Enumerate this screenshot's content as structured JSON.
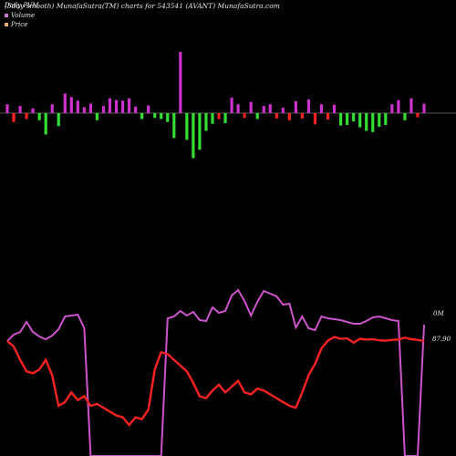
{
  "header": {
    "left_title": "Daily PVM",
    "title": "(5day smooth) MunafaSutra(TM) charts for 543541 (AVANT) MunafaSutra.com"
  },
  "legend": {
    "volume_label": "Volume",
    "price_label": "Price"
  },
  "labels": {
    "volume_end": "0M",
    "price_end": "87.90"
  },
  "colors": {
    "background": "#000000",
    "volume_line": "#cc55cc",
    "price_line": "#ff2222",
    "bar_up": "#cc33cc",
    "bar_down_red": "#ff2222",
    "bar_down_green": "#33dd33",
    "zero_line": "#aaaaaa",
    "legend_volume": "#d070d0",
    "legend_price": "#e8b070"
  },
  "chart_data": {
    "type": "line",
    "n": 66,
    "series": [
      {
        "name": "Volume",
        "values": [
          374,
          367,
          364,
          353,
          364,
          369,
          372,
          368,
          361,
          347,
          346,
          345,
          360,
          820,
          900,
          900,
          900,
          900,
          900,
          900,
          900,
          900,
          900,
          900,
          900,
          349,
          347,
          341,
          346,
          342,
          351,
          352,
          337,
          343,
          341,
          324,
          318,
          330,
          346,
          331,
          319,
          322,
          325,
          334,
          333,
          359,
          347,
          360,
          362,
          347,
          349,
          350,
          351,
          353,
          355,
          355,
          352,
          348,
          347,
          349,
          351,
          352,
          540,
          900,
          900,
          356
        ]
      },
      {
        "name": "Price",
        "values": [
          87.9,
          86.5,
          83,
          80,
          79.5,
          80.5,
          83,
          79,
          71,
          72,
          74.5,
          72.5,
          73.5,
          71,
          71.5,
          70.5,
          69.5,
          68.5,
          68,
          66,
          68,
          67.5,
          70,
          80.5,
          85,
          84.5,
          83,
          81.5,
          80,
          77,
          73.5,
          73,
          75,
          76.5,
          74.5,
          76,
          77.5,
          74.5,
          74,
          75.5,
          75,
          74,
          73,
          72,
          71,
          70.5,
          74.5,
          79,
          82,
          86,
          88,
          89,
          88.5,
          88.6,
          87.5,
          88.5,
          88.3,
          88.4,
          88.1,
          88,
          88.2,
          88.3,
          88.8,
          88.4,
          88.2,
          87.9
        ]
      }
    ],
    "bars": [
      {
        "v": 1.5,
        "c": "up"
      },
      {
        "v": -1.5,
        "c": "red"
      },
      {
        "v": 1.2,
        "c": "up"
      },
      {
        "v": -1.0,
        "c": "red"
      },
      {
        "v": 0.8,
        "c": "up"
      },
      {
        "v": -1.2,
        "c": "green"
      },
      {
        "v": -3.6,
        "c": "green"
      },
      {
        "v": 1.5,
        "c": "up"
      },
      {
        "v": -2.2,
        "c": "green"
      },
      {
        "v": 3.3,
        "c": "up"
      },
      {
        "v": 2.7,
        "c": "up"
      },
      {
        "v": 2.1,
        "c": "up"
      },
      {
        "v": 1.0,
        "c": "up"
      },
      {
        "v": 1.6,
        "c": "up"
      },
      {
        "v": -1.2,
        "c": "green"
      },
      {
        "v": 1.2,
        "c": "up"
      },
      {
        "v": 2.5,
        "c": "up"
      },
      {
        "v": 2.2,
        "c": "up"
      },
      {
        "v": 2.1,
        "c": "up"
      },
      {
        "v": 2.5,
        "c": "up"
      },
      {
        "v": 1.1,
        "c": "up"
      },
      {
        "v": -1.0,
        "c": "green"
      },
      {
        "v": 1.3,
        "c": "up"
      },
      {
        "v": -0.8,
        "c": "green"
      },
      {
        "v": -1.0,
        "c": "green"
      },
      {
        "v": -1.5,
        "c": "green"
      },
      {
        "v": -4.2,
        "c": "green"
      },
      {
        "v": 10.3,
        "c": "up"
      },
      {
        "v": -4.5,
        "c": "green"
      },
      {
        "v": -7.6,
        "c": "green"
      },
      {
        "v": -6.2,
        "c": "green"
      },
      {
        "v": -3.0,
        "c": "green"
      },
      {
        "v": -1.8,
        "c": "green"
      },
      {
        "v": -1.0,
        "c": "red"
      },
      {
        "v": -1.7,
        "c": "green"
      },
      {
        "v": 2.6,
        "c": "up"
      },
      {
        "v": 1.5,
        "c": "up"
      },
      {
        "v": -0.8,
        "c": "red"
      },
      {
        "v": 1.9,
        "c": "up"
      },
      {
        "v": -1.0,
        "c": "green"
      },
      {
        "v": 1.2,
        "c": "up"
      },
      {
        "v": 1.5,
        "c": "up"
      },
      {
        "v": -0.9,
        "c": "red"
      },
      {
        "v": 0.9,
        "c": "up"
      },
      {
        "v": -1.2,
        "c": "red"
      },
      {
        "v": 2.0,
        "c": "up"
      },
      {
        "v": -0.9,
        "c": "red"
      },
      {
        "v": 2.3,
        "c": "up"
      },
      {
        "v": -1.9,
        "c": "red"
      },
      {
        "v": 1.5,
        "c": "up"
      },
      {
        "v": -1.1,
        "c": "red"
      },
      {
        "v": 1.4,
        "c": "up"
      },
      {
        "v": -2.1,
        "c": "green"
      },
      {
        "v": -2.0,
        "c": "green"
      },
      {
        "v": -1.4,
        "c": "green"
      },
      {
        "v": -2.4,
        "c": "green"
      },
      {
        "v": -3.0,
        "c": "green"
      },
      {
        "v": -3.2,
        "c": "green"
      },
      {
        "v": -2.3,
        "c": "green"
      },
      {
        "v": -2.0,
        "c": "green"
      },
      {
        "v": 1.5,
        "c": "up"
      },
      {
        "v": 2.2,
        "c": "up"
      },
      {
        "v": -1.2,
        "c": "green"
      },
      {
        "v": 2.5,
        "c": "up"
      },
      {
        "v": -0.7,
        "c": "red"
      },
      {
        "v": 1.6,
        "c": "up"
      }
    ]
  }
}
